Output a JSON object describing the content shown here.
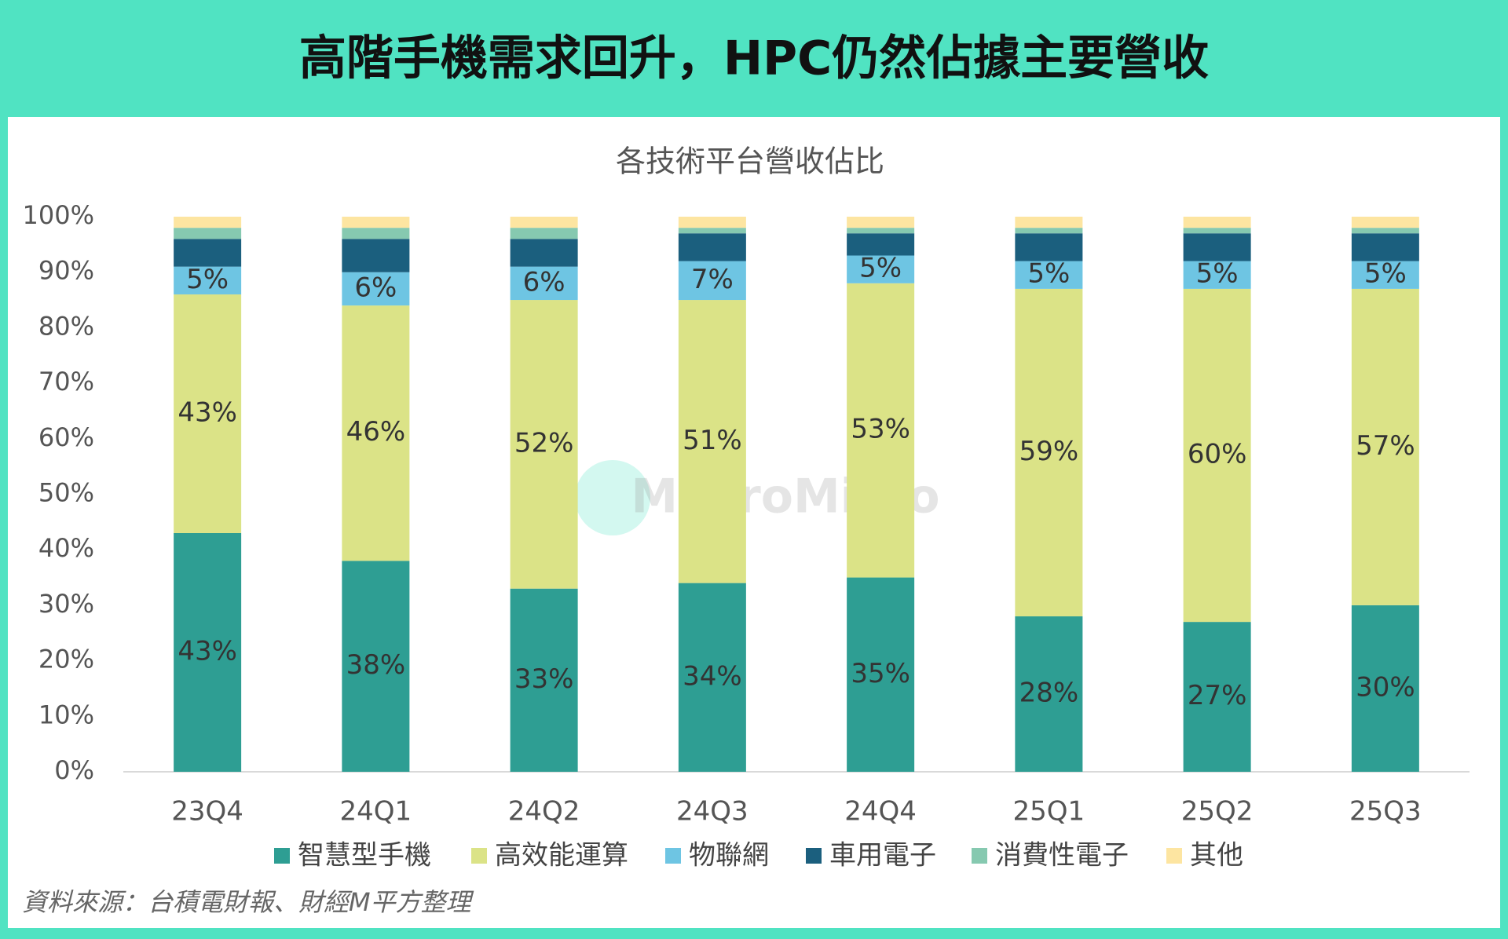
{
  "chart_data": {
    "type": "stacked_bar",
    "title": "高階手機需求回升，HPC仍然佔據主要營收",
    "subtitle": "各技術平台營收佔比",
    "source": "資料來源：台積電財報、財經M平方整理",
    "watermark": "MacroMicro",
    "categories": [
      "23Q4",
      "24Q1",
      "24Q2",
      "24Q3",
      "24Q4",
      "25Q1",
      "25Q2",
      "25Q3"
    ],
    "series": [
      {
        "name": "智慧型手機",
        "color": "#2e9e93",
        "values": [
          43,
          38,
          33,
          34,
          35,
          28,
          27,
          30
        ],
        "value_labels": [
          "43%",
          "38%",
          "33%",
          "34%",
          "35%",
          "28%",
          "27%",
          "30%"
        ]
      },
      {
        "name": "高效能運算",
        "color": "#dbe387",
        "values": [
          43,
          46,
          52,
          51,
          53,
          59,
          60,
          57
        ],
        "value_labels": [
          "43%",
          "46%",
          "52%",
          "51%",
          "53%",
          "59%",
          "60%",
          "57%"
        ]
      },
      {
        "name": "物聯網",
        "color": "#6ec5e3",
        "values": [
          5,
          6,
          6,
          7,
          5,
          5,
          5,
          5
        ],
        "value_labels": [
          "5%",
          "6%",
          "6%",
          "7%",
          "5%",
          "5%",
          "5%",
          "5%"
        ]
      },
      {
        "name": "車用電子",
        "color": "#1b5f7e",
        "values": [
          5,
          6,
          5,
          5,
          4,
          5,
          5,
          5
        ]
      },
      {
        "name": "消費性電子",
        "color": "#86c9b0",
        "values": [
          2,
          2,
          2,
          1,
          1,
          1,
          1,
          1
        ]
      },
      {
        "name": "其他",
        "color": "#fde5a1",
        "values": [
          2,
          2,
          2,
          2,
          2,
          2,
          2,
          2
        ]
      }
    ],
    "ylim": [
      0,
      100
    ],
    "yticks": [
      {
        "value": 0,
        "label": "0%"
      },
      {
        "value": 10,
        "label": "10%"
      },
      {
        "value": 20,
        "label": "20%"
      },
      {
        "value": 30,
        "label": "30%"
      },
      {
        "value": 40,
        "label": "40%"
      },
      {
        "value": 50,
        "label": "50%"
      },
      {
        "value": 60,
        "label": "60%"
      },
      {
        "value": 70,
        "label": "70%"
      },
      {
        "value": 80,
        "label": "80%"
      },
      {
        "value": 90,
        "label": "90%"
      },
      {
        "value": 100,
        "label": "100%"
      }
    ],
    "grid": false,
    "legend": "bottom"
  }
}
